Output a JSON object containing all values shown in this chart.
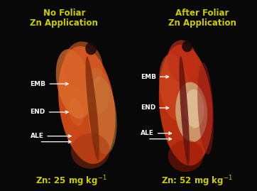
{
  "background_color": "#080808",
  "left_title_line1": "No Foliar",
  "left_title_line2": "Zn Application",
  "right_title_line1": "After Foliar",
  "right_title_line2": "Zn Application",
  "title_color": "#cccc00",
  "left_zn_label": "Zn: 25 mg kg",
  "right_zn_label": "Zn: 52 mg kg",
  "zn_label_color": "#cccc00",
  "annotation_color": "#ffffff",
  "annotation_fontsize": 6.5,
  "title_fontsize": 8.5,
  "zn_fontsize": 8.5,
  "figsize": [
    3.62,
    2.69
  ],
  "dpi": 100
}
